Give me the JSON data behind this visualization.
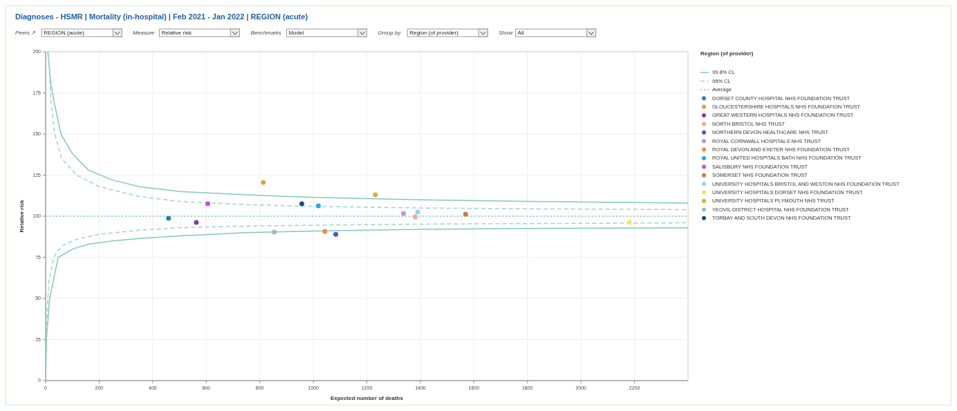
{
  "chart_data": {
    "type": "scatter",
    "title": "Diagnoses - HSMR | Mortality (in-hospital) | Feb 2021 - Jan 2022 | REGION (acute)",
    "annotations": [
      "Peers ↗",
      "REGION (acute)",
      "Measure",
      "Relative risk",
      "Benchmarks",
      "Model",
      "Group by",
      "Region (of provider)",
      "Show",
      "All"
    ],
    "xlabel": "Expected number of deaths",
    "ylabel": "Relative risk",
    "legend_title": "Region (of provider)",
    "legend": "right",
    "grid": true,
    "xlim": [
      0,
      2400
    ],
    "xticks": [
      0,
      200,
      400,
      600,
      800,
      1000,
      1200,
      1400,
      1600,
      1800,
      2000,
      2200
    ],
    "ylim": [
      0,
      200
    ],
    "yticks": [
      0,
      25,
      50,
      75,
      100,
      125,
      150,
      175,
      200
    ],
    "series": [
      {
        "name": "99.8% CL",
        "type": "line",
        "line_style": "solid",
        "color": "#7fc9c0",
        "x": [
          8,
          20,
          31,
          57,
          100,
          160,
          250,
          350,
          500,
          750,
          1000,
          1400,
          1800,
          2400
        ],
        "values": [
          200,
          180,
          170,
          150,
          138,
          128,
          122,
          118,
          115,
          113,
          111.5,
          110,
          109,
          108
        ]
      },
      {
        "type": "line",
        "line_style": "solid",
        "color": "#7fc9c0",
        "x": [
          0,
          3,
          15,
          47,
          100,
          160,
          250,
          350,
          500,
          750,
          1000,
          1400,
          1800,
          2400
        ],
        "values": [
          0,
          25,
          50,
          75,
          80,
          83,
          85,
          86.5,
          88,
          90,
          91,
          92,
          92.5,
          93
        ]
      },
      {
        "name": "95% CL",
        "type": "line",
        "line_style": "dashed",
        "color": "#9fd3c6",
        "x": [
          10,
          20,
          34,
          60,
          116,
          200,
          350,
          500,
          750,
          1000,
          1400,
          1800,
          2400
        ],
        "values": [
          200,
          170,
          150,
          135,
          125,
          118,
          112,
          109,
          107,
          106,
          105,
          104.5,
          104
        ]
      },
      {
        "type": "line",
        "line_style": "dashed",
        "color": "#9fd3c6",
        "x": [
          0,
          5,
          12,
          30,
          60,
          116,
          200,
          350,
          500,
          750,
          1000,
          1400,
          1800,
          2400
        ],
        "values": [
          0,
          40,
          60,
          75,
          82,
          86,
          89,
          91.5,
          93,
          94,
          94.5,
          95.2,
          95.5,
          96
        ]
      },
      {
        "name": "Average",
        "type": "line",
        "line_style": "dotted",
        "color": "#7fc9c0",
        "x": [
          0,
          2400
        ],
        "values": [
          100,
          100
        ]
      },
      {
        "name": "DORSET COUNTY HOSPITAL NHS FOUNDATION TRUST",
        "color": "#2a7fc1",
        "x": [
          459
        ],
        "values": [
          98.7
        ]
      },
      {
        "name": "GLOUCESTERSHIRE HOSPITALS NHS FOUNDATION TRUST",
        "color": "#d9a441",
        "x": [
          813
        ],
        "values": [
          120.6
        ]
      },
      {
        "name": "GREAT WESTERN HOSPITALS NHS FOUNDATION TRUST",
        "color": "#7a3fb0",
        "x": [
          563
        ],
        "values": [
          96.2
        ]
      },
      {
        "name": "NORTH BRISTOL NHS TRUST",
        "color": "#f4a6a0",
        "x": [
          1381
        ],
        "values": [
          99.6
        ]
      },
      {
        "name": "NORTHERN DEVON HEALTHCARE NHS TRUST",
        "color": "#4a5ab0",
        "x": [
          1084
        ],
        "values": [
          89
        ]
      },
      {
        "name": "ROYAL CORNWALL HOSPITALS NHS TRUST",
        "color": "#b49ad6",
        "x": [
          1337
        ],
        "values": [
          101.7
        ]
      },
      {
        "name": "ROYAL DEVON AND EXETER NHS FOUNDATION TRUST",
        "color": "#f08a3a",
        "x": [
          1043
        ],
        "values": [
          90.8
        ]
      },
      {
        "name": "ROYAL UNITED HOSPITALS BATH NHS FOUNDATION TRUST",
        "color": "#2aa7e0",
        "x": [
          1019
        ],
        "values": [
          106.3
        ]
      },
      {
        "name": "SALISBURY NHS FOUNDATION TRUST",
        "color": "#c84fd8",
        "x": [
          606
        ],
        "values": [
          107.6
        ]
      },
      {
        "name": "SOMERSET NHS FOUNDATION TRUST",
        "color": "#c77a4a",
        "x": [
          1569
        ],
        "values": [
          101.3
        ]
      },
      {
        "name": "UNIVERSITY HOSPITALS BRISTOL AND WESTON NHS FOUNDATION TRUST",
        "color": "#8fd4e8",
        "x": [
          1390
        ],
        "values": [
          102.5
        ]
      },
      {
        "name": "UNIVERSITY HOSPITALS DORSET NHS FOUNDATION TRUST",
        "color": "#f5e35a",
        "x": [
          2181
        ],
        "values": [
          96.2
        ]
      },
      {
        "name": "UNIVERSITY HOSPITALS PLYMOUTH NHS TRUST",
        "color": "#c9b53a",
        "x": [
          1232
        ],
        "values": [
          113
        ]
      },
      {
        "name": "YEOVIL DISTRICT HOSPITAL NHS FOUNDATION TRUST",
        "color": "#9fb8c8",
        "x": [
          854
        ],
        "values": [
          90.3
        ]
      },
      {
        "name": "TORBAY AND SOUTH DEVON NHS FOUNDATION TRUST",
        "color": "#1f4e79",
        "x": [
          957
        ],
        "values": [
          107.6
        ]
      }
    ]
  }
}
